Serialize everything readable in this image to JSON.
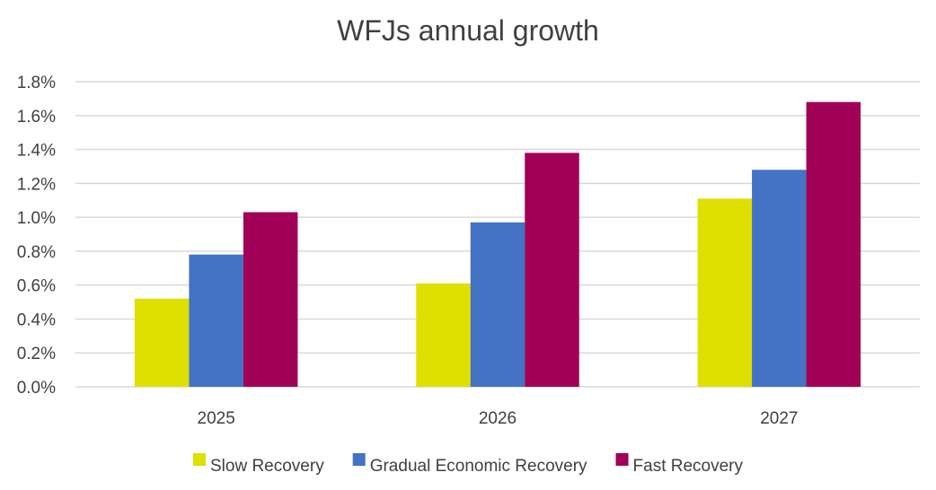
{
  "chart_data": {
    "type": "bar",
    "title": "WFJs annual growth",
    "xlabel": "",
    "ylabel": "",
    "categories": [
      "2025",
      "2026",
      "2027"
    ],
    "series": [
      {
        "name": "Slow Recovery",
        "color": "#dde000",
        "values": [
          0.0052,
          0.0061,
          0.0111
        ]
      },
      {
        "name": "Gradual Economic Recovery",
        "color": "#4472c4",
        "values": [
          0.0078,
          0.0097,
          0.0128
        ]
      },
      {
        "name": "Fast Recovery",
        "color": "#a00055",
        "values": [
          0.0103,
          0.0138,
          0.0168
        ]
      }
    ],
    "ylim": [
      0,
      0.018
    ],
    "ytick_values": [
      0,
      0.002,
      0.004,
      0.006,
      0.008,
      0.01,
      0.012,
      0.014,
      0.016,
      0.018
    ],
    "ytick_labels": [
      "0.0%",
      "0.2%",
      "0.4%",
      "0.6%",
      "0.8%",
      "1.0%",
      "1.2%",
      "1.4%",
      "1.6%",
      "1.8%"
    ],
    "grid": true,
    "gridline_color": "#d9d9d9",
    "legend_position": "bottom"
  }
}
